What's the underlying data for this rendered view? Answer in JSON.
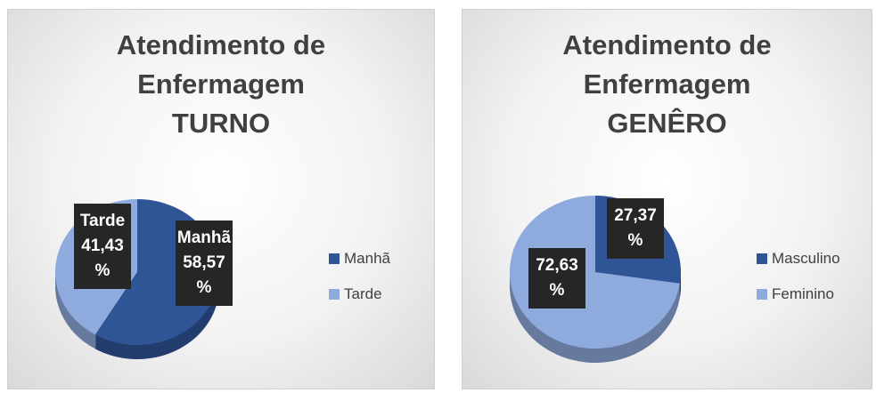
{
  "chart_data": [
    {
      "type": "pie",
      "title": "Atendimento de Enfermagem",
      "subtitle": "TURNO",
      "categories": [
        "Manhã",
        "Tarde"
      ],
      "values": [
        58.57,
        41.43
      ],
      "value_labels": [
        "Manhã 58,57 %",
        "Tarde 41,43 %"
      ],
      "colors": [
        "#2f5597",
        "#8faadc"
      ],
      "legend": "right"
    },
    {
      "type": "pie",
      "title": "Atendimento de Enfermagem",
      "subtitle": "GENÊRO",
      "categories": [
        "Masculino",
        "Feminino"
      ],
      "values": [
        27.37,
        72.63
      ],
      "value_labels": [
        "27,37 %",
        "72,63 %"
      ],
      "colors": [
        "#2f5597",
        "#8faadc"
      ],
      "legend": "right"
    }
  ]
}
